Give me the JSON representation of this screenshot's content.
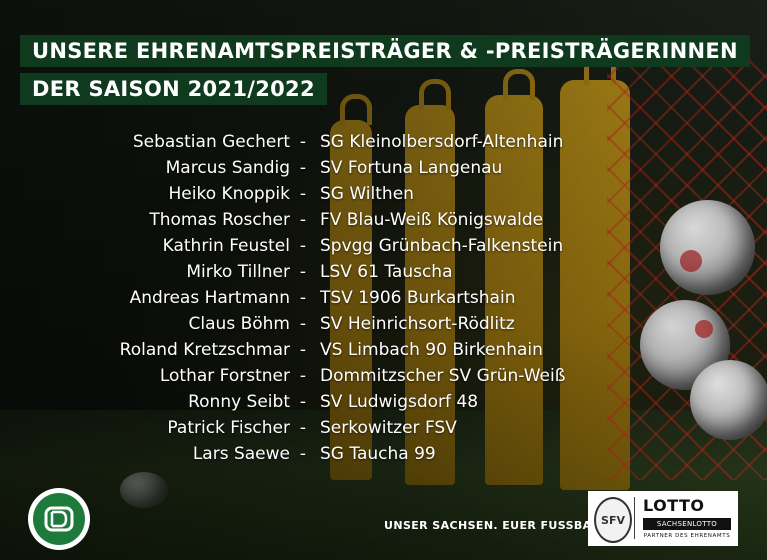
{
  "title": {
    "line1": "Unsere Ehrenamtspreisträger & -Preisträgerinnen",
    "line2": "der Saison 2021/2022"
  },
  "separator": "-",
  "winners": [
    {
      "name": "Sebastian Gechert",
      "club": "SG Kleinolbersdorf-Altenhain"
    },
    {
      "name": "Marcus Sandig",
      "club": "SV Fortuna Langenau"
    },
    {
      "name": "Heiko Knoppik",
      "club": "SG Wilthen"
    },
    {
      "name": "Thomas Roscher",
      "club": "FV Blau-Weiß Königswalde"
    },
    {
      "name": "Kathrin Feustel",
      "club": "Spvgg Grünbach-Falkenstein"
    },
    {
      "name": "Mirko Tillner",
      "club": "LSV 61 Tauscha"
    },
    {
      "name": "Andreas Hartmann",
      "club": "TSV 1906 Burkartshain"
    },
    {
      "name": "Claus Böhm",
      "club": "SV Heinrichsort-Rödlitz"
    },
    {
      "name": "Roland Kretzschmar",
      "club": "VS Limbach 90 Birkenhain"
    },
    {
      "name": "Lothar Forstner",
      "club": "Dommitzscher SV Grün-Weiß"
    },
    {
      "name": "Ronny Seibt",
      "club": "SV Ludwigsdorf 48"
    },
    {
      "name": "Patrick Fischer",
      "club": "Serkowitzer FSV"
    },
    {
      "name": "Lars Saewe",
      "club": "SG Taucha 99"
    }
  ],
  "footer": {
    "slogan": "UNSER SACHSEN. EUER FUSSBALL.",
    "dfb_logo_icon": "dfb-logo",
    "sfv_logo_text": "SFV",
    "lotto_brand": "LOTTO",
    "lotto_sub": "SACHSENLOTTO",
    "lotto_partner": "PARTNER DES EHRENAMTS"
  },
  "colors": {
    "title_bar": "#0f3a1d",
    "text": "#ffffff",
    "dfb_green": "#1e7a3a"
  }
}
